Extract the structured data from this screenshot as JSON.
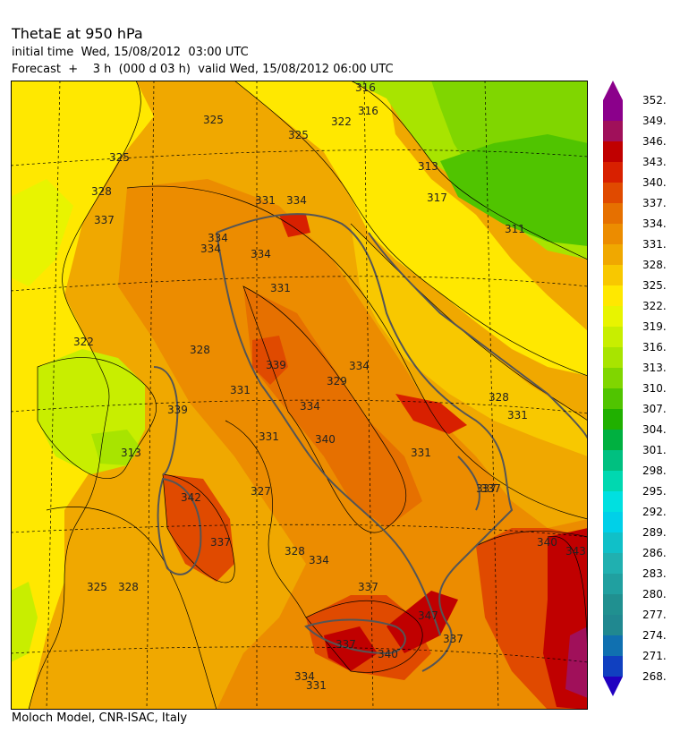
{
  "header": {
    "title": "ThetaE at 950 hPa",
    "line1": "initial time  Wed, 15/08/2012  03:00 UTC",
    "line2": "Forecast  +    3 h  (000 d 03 h)  valid Wed, 15/08/2012 06:00 UTC"
  },
  "footer": "Moloch Model, CNR-ISAC, Italy",
  "colorbar": {
    "levels": [
      {
        "label": "352.",
        "color": "#8b008b"
      },
      {
        "label": "349.",
        "color": "#a0105a"
      },
      {
        "label": "346.",
        "color": "#c00000"
      },
      {
        "label": "343.",
        "color": "#d82000"
      },
      {
        "label": "340.",
        "color": "#e04a00"
      },
      {
        "label": "337.",
        "color": "#e67000"
      },
      {
        "label": "334.",
        "color": "#ec8c00"
      },
      {
        "label": "331.",
        "color": "#f0a800"
      },
      {
        "label": "328.",
        "color": "#f8c800"
      },
      {
        "label": "325.",
        "color": "#ffe800"
      },
      {
        "label": "322.",
        "color": "#e8f400"
      },
      {
        "label": "319.",
        "color": "#c8ee00"
      },
      {
        "label": "316.",
        "color": "#a8e400"
      },
      {
        "label": "313.",
        "color": "#80d600"
      },
      {
        "label": "310.",
        "color": "#50c400"
      },
      {
        "label": "307.",
        "color": "#20b000"
      },
      {
        "label": "304.",
        "color": "#00b040"
      },
      {
        "label": "301.",
        "color": "#00c080"
      },
      {
        "label": "298.",
        "color": "#00d8b0"
      },
      {
        "label": "295.",
        "color": "#00e0e0"
      },
      {
        "label": "292.",
        "color": "#00d0e8"
      },
      {
        "label": "289.",
        "color": "#10c0c8"
      },
      {
        "label": "286.",
        "color": "#20b0b0"
      },
      {
        "label": "283.",
        "color": "#20a0a0"
      },
      {
        "label": "280.",
        "color": "#209090"
      },
      {
        "label": "277.",
        "color": "#208890"
      },
      {
        "label": "274.",
        "color": "#1070b0"
      },
      {
        "label": "271.",
        "color": "#1040c0"
      },
      {
        "label": "268.",
        "color": "#2000c0"
      }
    ]
  },
  "contour_labels": [
    "316",
    "316",
    "325",
    "322",
    "325",
    "313",
    "331",
    "334",
    "337",
    "334",
    "334",
    "331",
    "322",
    "328",
    "339",
    "334",
    "339",
    "329",
    "331",
    "334",
    "340",
    "331",
    "342",
    "327",
    "337",
    "328",
    "334",
    "337",
    "313",
    "331",
    "325",
    "328",
    "337",
    "337",
    "334",
    "340",
    "347",
    "337",
    "331",
    "325",
    "328",
    "331",
    "311",
    "317",
    "328",
    "340",
    "343",
    "337",
    "334"
  ]
}
